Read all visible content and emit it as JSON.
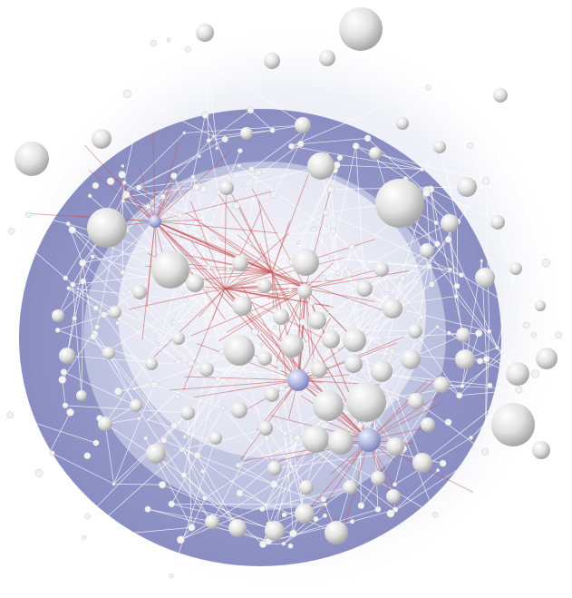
{
  "diagram": {
    "type": "network-graph",
    "layout": "concentric-rings",
    "rings": 3,
    "node_color": "#e4e4e4",
    "hub_color": "#a9add8",
    "edge_color": "#ffffff",
    "core_edge_color": "#c85a5a",
    "ring_outer_color": "#8f93c4",
    "ring_middle_color": "#c6c9e4",
    "ring_inner_color": "#e6e7f2"
  }
}
